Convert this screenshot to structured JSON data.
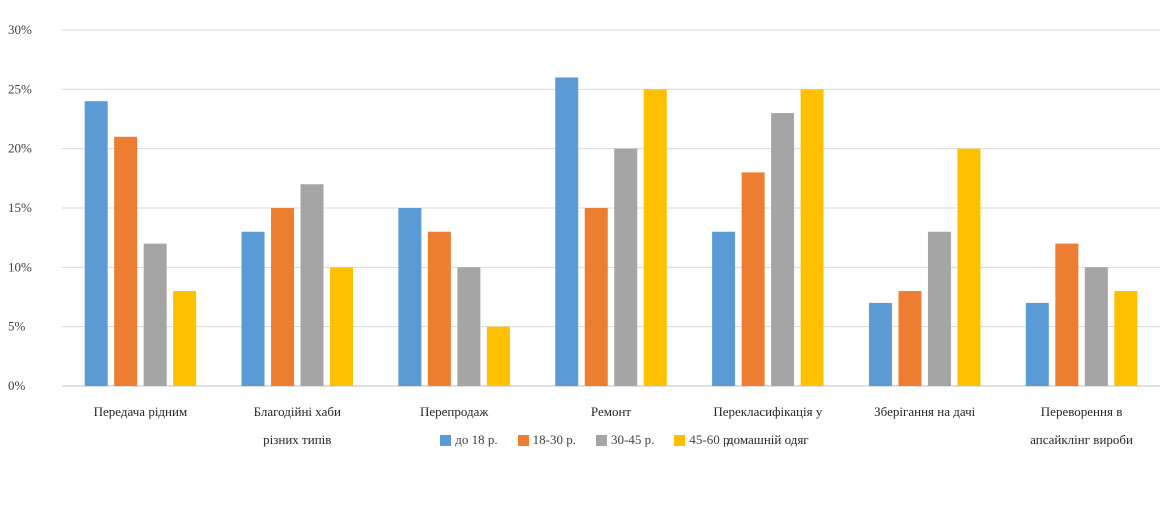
{
  "chart_data": {
    "type": "bar",
    "title": "",
    "xlabel": "",
    "ylabel": "",
    "ylim": [
      0,
      30
    ],
    "yticks": [
      0,
      5,
      10,
      15,
      20,
      25,
      30
    ],
    "ytick_labels": [
      "0%",
      "5%",
      "10%",
      "15%",
      "20%",
      "25%",
      "30%"
    ],
    "grid": true,
    "legend_position": "bottom",
    "categories": [
      [
        "Передача рідним"
      ],
      [
        "Благодійні хаби",
        "різних типів"
      ],
      [
        "Перепродаж"
      ],
      [
        "Ремонт"
      ],
      [
        "Перекласифікація у",
        "домашній одяг"
      ],
      [
        "Зберігання на дачі"
      ],
      [
        "Переворення в",
        "апсайклінг вироби"
      ]
    ],
    "series": [
      {
        "name": "до 18 р.",
        "color": "#5b9bd5",
        "values": [
          24,
          13,
          15,
          26,
          13,
          7,
          7
        ]
      },
      {
        "name": "18-30 р.",
        "color": "#ed7d31",
        "values": [
          21,
          15,
          13,
          15,
          18,
          8,
          12
        ]
      },
      {
        "name": "30-45 р.",
        "color": "#a5a5a5",
        "values": [
          12,
          17,
          10,
          20,
          23,
          13,
          10
        ]
      },
      {
        "name": "45-60 р.",
        "color": "#ffc000",
        "values": [
          8,
          10,
          5,
          25,
          25,
          20,
          8
        ]
      }
    ]
  }
}
